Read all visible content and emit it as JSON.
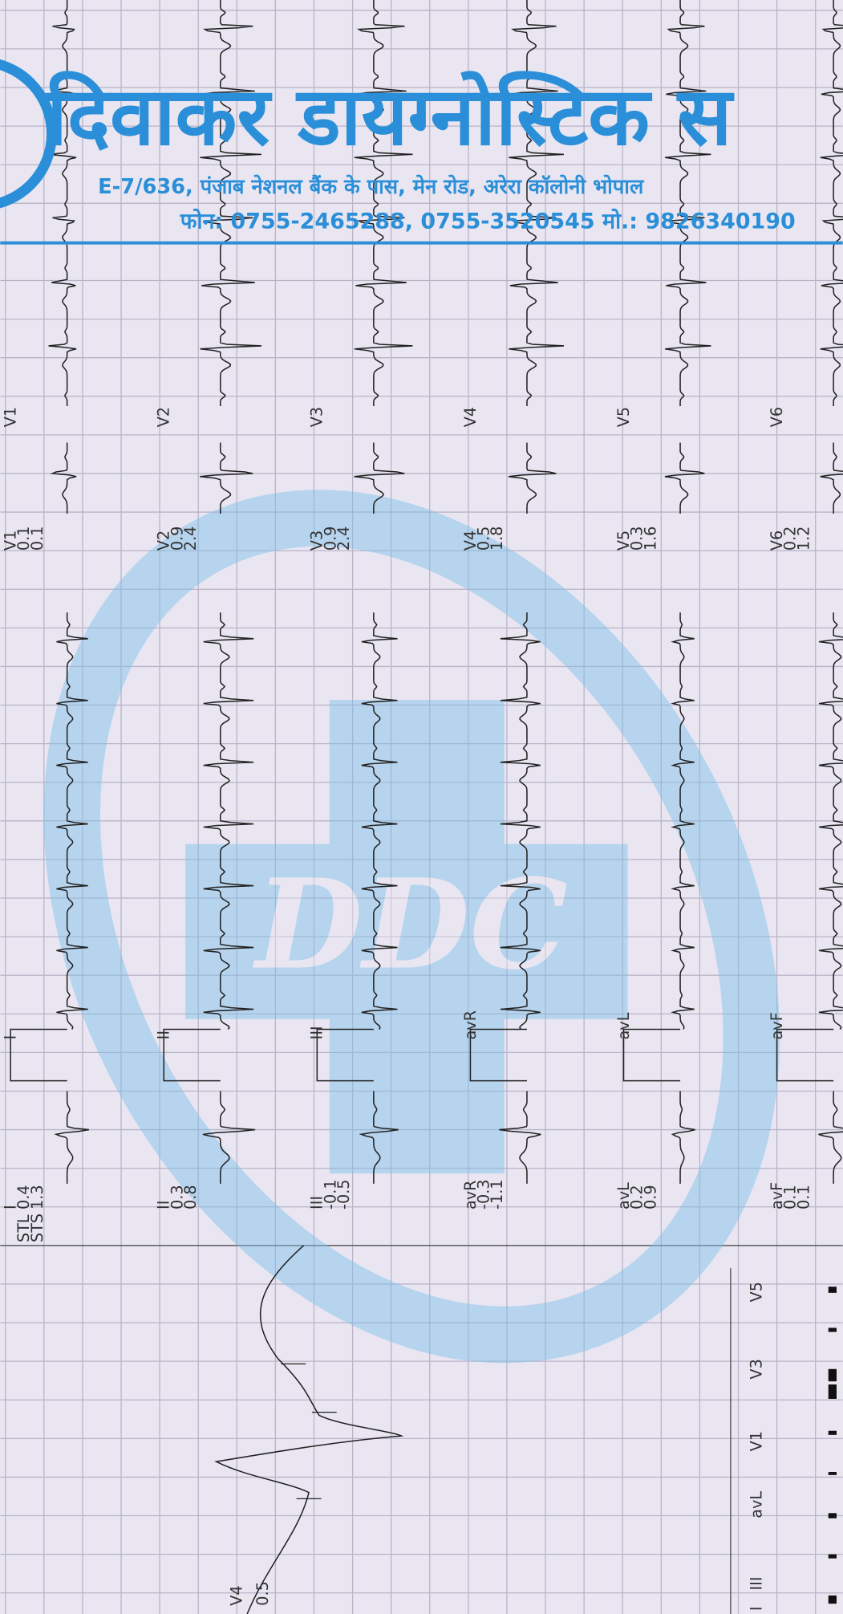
{
  "header": {
    "title": "दिवाकर डायग्नोस्टिक स",
    "address": "E-7/636, पंजाब नेशनल बैंक के पास, मेन रोड, अरेरा कॉलोनी भोपाल",
    "phone": "फोन: 0755-2465288, 0755-3520545 मो.: 9826340190"
  },
  "watermark": "DDC",
  "measure_labels": [
    "STL",
    "STS"
  ],
  "strips": [
    {
      "chest_lead": "V1",
      "chest_measure": {
        "lead": "V1",
        "stl": "0.1",
        "sts": "0.1"
      },
      "limb_lead": "I",
      "limb_measure": {
        "lead": "I",
        "stl": "0.4",
        "sts": "1.3"
      }
    },
    {
      "chest_lead": "V2",
      "chest_measure": {
        "lead": "V2",
        "stl": "0.9",
        "sts": "2.4"
      },
      "limb_lead": "II",
      "limb_measure": {
        "lead": "II",
        "stl": "0.3",
        "sts": "0.8"
      }
    },
    {
      "chest_lead": "V3",
      "chest_measure": {
        "lead": "V3",
        "stl": "0.9",
        "sts": "2.4"
      },
      "limb_lead": "III",
      "limb_measure": {
        "lead": "III",
        "stl": "-0.1",
        "sts": "-0.5"
      }
    },
    {
      "chest_lead": "V4",
      "chest_measure": {
        "lead": "V4",
        "stl": "0.5",
        "sts": "1.8"
      },
      "limb_lead": "avR",
      "limb_measure": {
        "lead": "avR",
        "stl": "-0.3",
        "sts": "-1.1"
      }
    },
    {
      "chest_lead": "V5",
      "chest_measure": {
        "lead": "V5",
        "stl": "0.3",
        "sts": "1.6"
      },
      "limb_lead": "avL",
      "limb_measure": {
        "lead": "avL",
        "stl": "0.2",
        "sts": "0.9"
      }
    },
    {
      "chest_lead": "V6",
      "chest_measure": {
        "lead": "V6",
        "stl": "0.2",
        "sts": "1.2"
      },
      "limb_lead": "avF",
      "limb_measure": {
        "lead": "avF",
        "stl": "0.1",
        "sts": "0.1"
      }
    }
  ],
  "detail": {
    "lead": "V4",
    "value": "0.5"
  },
  "bar_labels": [
    "V5",
    "V3",
    "V1",
    "avL",
    "III",
    "I"
  ]
}
